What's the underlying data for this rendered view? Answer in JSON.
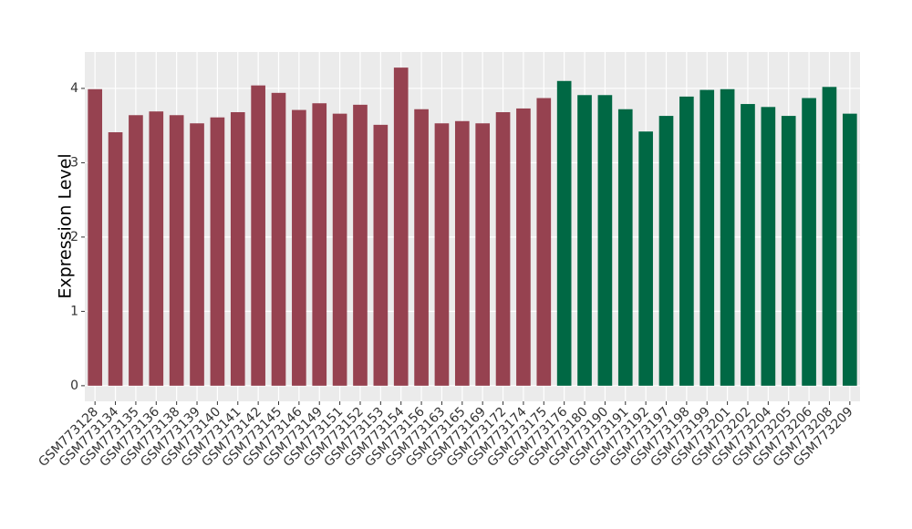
{
  "chart_data": {
    "type": "bar",
    "y_label": "Expression Level",
    "categories": [
      "GSM773128",
      "GSM773134",
      "GSM773135",
      "GSM773136",
      "GSM773138",
      "GSM773139",
      "GSM773140",
      "GSM773141",
      "GSM773142",
      "GSM773145",
      "GSM773146",
      "GSM773149",
      "GSM773151",
      "GSM773152",
      "GSM773153",
      "GSM773154",
      "GSM773156",
      "GSM773163",
      "GSM773165",
      "GSM773169",
      "GSM773172",
      "GSM773174",
      "GSM773175",
      "GSM773176",
      "GSM773180",
      "GSM773190",
      "GSM773191",
      "GSM773192",
      "GSM773197",
      "GSM773198",
      "GSM773199",
      "GSM773201",
      "GSM773202",
      "GSM773204",
      "GSM773205",
      "GSM773206",
      "GSM773208",
      "GSM773209"
    ],
    "values": [
      3.99,
      3.41,
      3.64,
      3.69,
      3.64,
      3.53,
      3.61,
      3.68,
      4.04,
      3.94,
      3.71,
      3.8,
      3.66,
      3.78,
      3.51,
      4.28,
      3.72,
      3.53,
      3.56,
      3.53,
      3.68,
      3.73,
      3.87,
      4.1,
      3.91,
      3.91,
      3.72,
      3.42,
      3.63,
      3.89,
      3.98,
      3.99,
      3.79,
      3.75,
      3.63,
      3.87,
      4.02,
      3.66
    ],
    "colors": [
      "#964250",
      "#964250",
      "#964250",
      "#964250",
      "#964250",
      "#964250",
      "#964250",
      "#964250",
      "#964250",
      "#964250",
      "#964250",
      "#964250",
      "#964250",
      "#964250",
      "#964250",
      "#964250",
      "#964250",
      "#964250",
      "#964250",
      "#964250",
      "#964250",
      "#964250",
      "#964250",
      "#006844",
      "#006844",
      "#006844",
      "#006844",
      "#006844",
      "#006844",
      "#006844",
      "#006844",
      "#006844",
      "#006844",
      "#006844",
      "#006844",
      "#006844",
      "#006844",
      "#006844"
    ],
    "ylim": [
      -0.21,
      4.49
    ],
    "yticks": [
      0,
      1,
      2,
      3,
      4
    ],
    "grid": true
  }
}
